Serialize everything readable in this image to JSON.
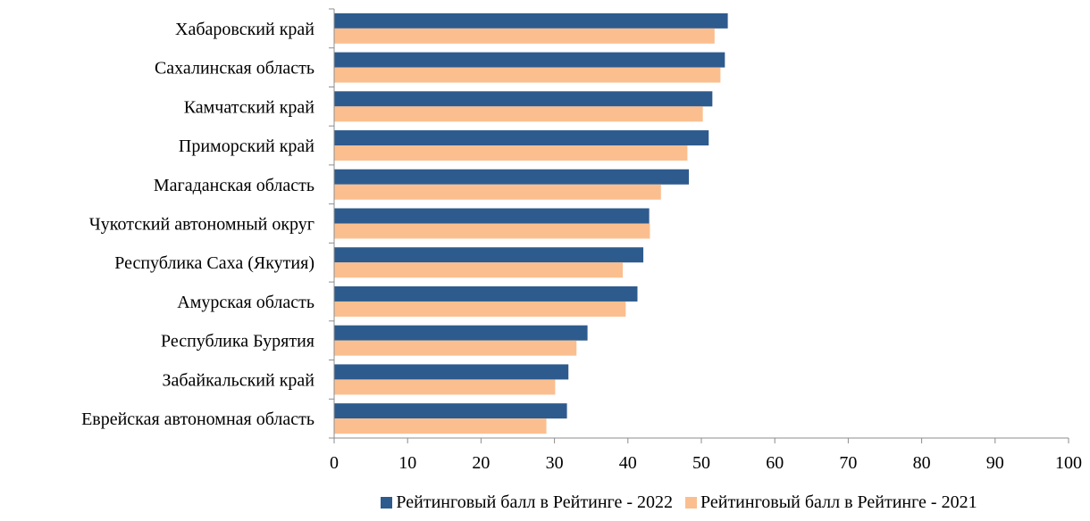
{
  "chart_data": {
    "type": "bar",
    "orientation": "horizontal",
    "categories": [
      "Хабаровский край",
      "Сахалинская область",
      "Камчатский край",
      "Приморский край",
      "Магаданская область",
      "Чукотский автономный округ",
      "Республика Саха (Якутия)",
      "Амурская область",
      "Республика Бурятия",
      "Забайкальский край",
      "Еврейская автономная область"
    ],
    "series": [
      {
        "name": "Рейтинговый балл в Рейтинге - 2022",
        "color": "#2e5b8e",
        "values": [
          53.6,
          53.2,
          51.5,
          51.0,
          48.3,
          42.9,
          42.1,
          41.3,
          34.5,
          31.9,
          31.7
        ]
      },
      {
        "name": "Рейтинговый балл в Рейтинге - 2021",
        "color": "#fbbf8f",
        "values": [
          51.8,
          52.6,
          50.2,
          48.1,
          44.5,
          43.0,
          39.3,
          39.7,
          33.0,
          30.1,
          28.9
        ]
      }
    ],
    "xlim": [
      0,
      100
    ],
    "xticks": [
      "0",
      "10",
      "20",
      "30",
      "40",
      "50",
      "60",
      "70",
      "80",
      "90",
      "100"
    ],
    "grid": false,
    "legend_position": "bottom"
  }
}
